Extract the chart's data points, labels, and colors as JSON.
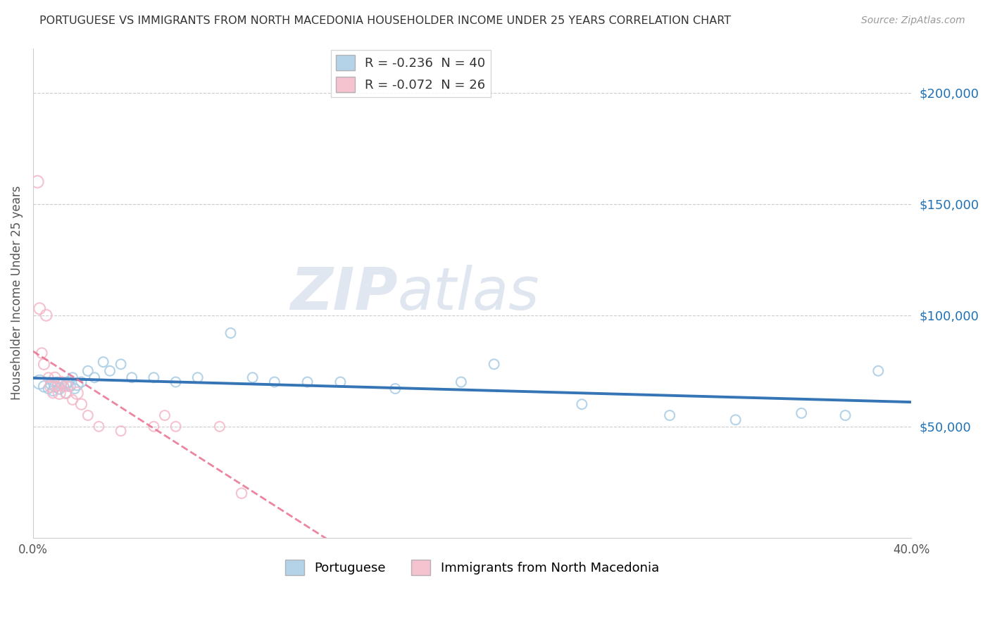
{
  "title": "PORTUGUESE VS IMMIGRANTS FROM NORTH MACEDONIA HOUSEHOLDER INCOME UNDER 25 YEARS CORRELATION CHART",
  "source": "Source: ZipAtlas.com",
  "ylabel": "Householder Income Under 25 years",
  "xmin": 0.0,
  "xmax": 0.4,
  "ymin": 0,
  "ymax": 220000,
  "right_yticks": [
    50000,
    100000,
    150000,
    200000
  ],
  "right_yticklabels": [
    "$50,000",
    "$100,000",
    "$150,000",
    "$200,000"
  ],
  "watermark_zip": "ZIP",
  "watermark_atlas": "atlas",
  "r1": -0.236,
  "n1": 40,
  "r2": -0.072,
  "n2": 26,
  "color_blue": "#a8cce4",
  "color_pink": "#f4b8c8",
  "color_trendline_blue": "#3575b5",
  "color_trendline_pink": "#e87090",
  "portuguese_x": [
    0.003,
    0.005,
    0.007,
    0.008,
    0.009,
    0.01,
    0.011,
    0.012,
    0.013,
    0.014,
    0.015,
    0.016,
    0.017,
    0.018,
    0.019,
    0.02,
    0.022,
    0.025,
    0.028,
    0.032,
    0.035,
    0.04,
    0.045,
    0.055,
    0.065,
    0.075,
    0.09,
    0.1,
    0.11,
    0.125,
    0.14,
    0.165,
    0.195,
    0.21,
    0.25,
    0.29,
    0.32,
    0.35,
    0.37,
    0.385
  ],
  "portuguese_y": [
    70000,
    68000,
    67000,
    69000,
    66000,
    68000,
    70000,
    67000,
    69000,
    68000,
    65000,
    70000,
    68000,
    72000,
    67000,
    69000,
    70000,
    75000,
    72000,
    79000,
    75000,
    78000,
    72000,
    72000,
    70000,
    72000,
    92000,
    72000,
    70000,
    70000,
    70000,
    67000,
    70000,
    78000,
    60000,
    55000,
    53000,
    56000,
    55000,
    75000
  ],
  "macedon_x": [
    0.002,
    0.003,
    0.004,
    0.005,
    0.006,
    0.007,
    0.008,
    0.009,
    0.01,
    0.011,
    0.012,
    0.013,
    0.014,
    0.015,
    0.016,
    0.018,
    0.02,
    0.022,
    0.025,
    0.03,
    0.04,
    0.055,
    0.06,
    0.065,
    0.085,
    0.095
  ],
  "macedon_y": [
    160000,
    103000,
    83000,
    78000,
    100000,
    72000,
    68000,
    65000,
    72000,
    68000,
    65000,
    70000,
    68000,
    65000,
    68000,
    62000,
    65000,
    60000,
    55000,
    50000,
    48000,
    50000,
    55000,
    50000,
    50000,
    20000
  ],
  "port_sizes": [
    200,
    120,
    100,
    100,
    100,
    120,
    100,
    120,
    100,
    100,
    100,
    120,
    100,
    100,
    100,
    150,
    100,
    100,
    100,
    100,
    100,
    100,
    100,
    100,
    100,
    100,
    100,
    100,
    100,
    100,
    100,
    100,
    100,
    100,
    100,
    100,
    100,
    100,
    100,
    100
  ],
  "mac_sizes": [
    150,
    130,
    110,
    120,
    130,
    100,
    130,
    100,
    120,
    100,
    150,
    120,
    100,
    120,
    100,
    100,
    150,
    120,
    100,
    100,
    100,
    100,
    100,
    100,
    100,
    110
  ]
}
